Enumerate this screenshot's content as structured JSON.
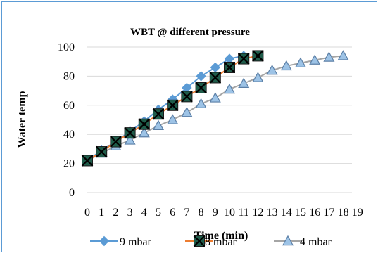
{
  "chart_data": {
    "type": "line",
    "title": "WBT @ different pressure",
    "xlabel": "Time (min)",
    "ylabel": "Water temp",
    "x": [
      0,
      1,
      2,
      3,
      4,
      5,
      6,
      7,
      8,
      9,
      10,
      11,
      12,
      13,
      14,
      15,
      16,
      17,
      18,
      19
    ],
    "xtick_labels": [
      "0",
      "1",
      "2",
      "3",
      "4",
      "5",
      "6",
      "7",
      "8",
      "9",
      "10",
      "11",
      "12",
      "13",
      "14",
      "15",
      "16",
      "17",
      "18",
      "19"
    ],
    "ylim": [
      0,
      100
    ],
    "yticks": [
      "0",
      "20",
      "40",
      "60",
      "80",
      "100"
    ],
    "ytick_values": [
      0,
      20,
      40,
      60,
      80,
      100
    ],
    "grid": "horizontal",
    "legend_position": "bottom",
    "series": [
      {
        "name": "9 mbar",
        "marker": "diamond",
        "color": "#5b9bd5",
        "fill": "#5b9bd5",
        "x": [
          0,
          1,
          2,
          3,
          4,
          5,
          6,
          7,
          8,
          9,
          10,
          11
        ],
        "values": [
          22,
          29,
          35,
          42,
          49,
          57,
          64,
          72,
          80,
          86,
          92,
          94
        ]
      },
      {
        "name": "8 mbar",
        "marker": "square-x",
        "color": "#ed7d31",
        "fill": "#1f5c4a",
        "x": [
          0,
          1,
          2,
          3,
          4,
          5,
          6,
          7,
          8,
          9,
          10,
          11,
          12
        ],
        "values": [
          22,
          28,
          35,
          41,
          47,
          54,
          60,
          66,
          72,
          79,
          86,
          92,
          94
        ]
      },
      {
        "name": "4 mbar",
        "marker": "triangle",
        "color": "#a5a5a5",
        "fill": "#9dc3e6",
        "x": [
          0,
          1,
          2,
          3,
          4,
          5,
          6,
          7,
          8,
          9,
          10,
          11,
          12,
          13,
          14,
          15,
          16,
          17,
          18
        ],
        "values": [
          22,
          27,
          32,
          36,
          41,
          46,
          50,
          55,
          61,
          65,
          71,
          75,
          79,
          84,
          87,
          89,
          91,
          93,
          94
        ]
      }
    ]
  }
}
